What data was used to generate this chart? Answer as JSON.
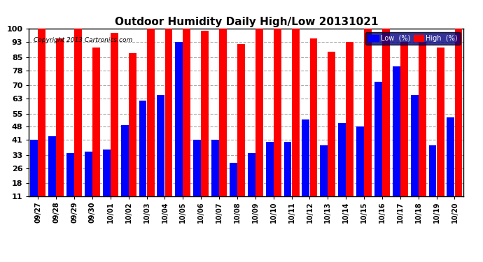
{
  "title": "Outdoor Humidity Daily High/Low 20131021",
  "copyright": "Copyright 2013 Cartronics.com",
  "categories": [
    "09/27",
    "09/28",
    "09/29",
    "09/30",
    "10/01",
    "10/02",
    "10/03",
    "10/04",
    "10/05",
    "10/06",
    "10/07",
    "10/08",
    "10/09",
    "10/10",
    "10/11",
    "10/12",
    "10/13",
    "10/14",
    "10/15",
    "10/16",
    "10/17",
    "10/18",
    "10/19",
    "10/20"
  ],
  "high": [
    100,
    95,
    100,
    90,
    98,
    87,
    100,
    100,
    100,
    99,
    100,
    92,
    100,
    100,
    100,
    95,
    88,
    93,
    100,
    100,
    93,
    93,
    90,
    100
  ],
  "low": [
    41,
    43,
    34,
    35,
    36,
    49,
    62,
    65,
    93,
    41,
    41,
    29,
    34,
    40,
    40,
    52,
    38,
    50,
    48,
    72,
    80,
    65,
    38,
    53
  ],
  "high_color": "#ff0000",
  "low_color": "#0000ff",
  "bg_color": "#ffffff",
  "plot_bg_color": "#ffffff",
  "grid_color": "#aaaaaa",
  "yticks": [
    11,
    18,
    26,
    33,
    41,
    48,
    55,
    63,
    70,
    78,
    85,
    93,
    100
  ],
  "ymin": 11,
  "ymax": 100,
  "title_fontsize": 11,
  "legend_low_label": "Low  (%)",
  "legend_high_label": "High  (%)"
}
